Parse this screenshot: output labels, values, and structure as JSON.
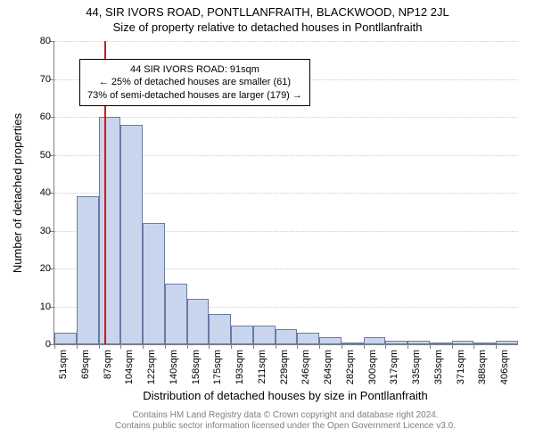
{
  "titles": {
    "main": "44, SIR IVORS ROAD, PONTLLANFRAITH, BLACKWOOD, NP12 2JL",
    "sub": "Size of property relative to detached houses in Pontllanfraith"
  },
  "axes": {
    "ylabel": "Number of detached properties",
    "xlabel": "Distribution of detached houses by size in Pontllanfraith",
    "ylim": [
      0,
      80
    ],
    "ytick_step": 10,
    "y_tick_font": 11,
    "x_tick_font": 11,
    "label_font": 13
  },
  "histogram": {
    "type": "bar",
    "categories": [
      "51sqm",
      "69sqm",
      "87sqm",
      "104sqm",
      "122sqm",
      "140sqm",
      "158sqm",
      "175sqm",
      "193sqm",
      "211sqm",
      "229sqm",
      "246sqm",
      "264sqm",
      "282sqm",
      "300sqm",
      "317sqm",
      "335sqm",
      "353sqm",
      "371sqm",
      "388sqm",
      "406sqm"
    ],
    "values": [
      3,
      39,
      60,
      58,
      32,
      16,
      12,
      8,
      5,
      5,
      4,
      3,
      2,
      0,
      2,
      1,
      1,
      0,
      1,
      0,
      1
    ],
    "bar_fill": "#c9d5ed",
    "bar_stroke": "#6a7aa6",
    "bar_stroke_width": 1,
    "background_color": "#ffffff",
    "grid_color": "#cccccc"
  },
  "reference_line": {
    "value_sqm": 91,
    "color": "#d01818",
    "width": 2
  },
  "annotation": {
    "lines": [
      "44 SIR IVORS ROAD: 91sqm",
      "← 25% of detached houses are smaller (61)",
      "73% of semi-detached houses are larger (179) →"
    ],
    "border_color": "#000000",
    "bg_color": "#ffffff",
    "font_size": 11
  },
  "footer": {
    "line1": "Contains HM Land Registry data © Crown copyright and database right 2024.",
    "line2": "Contains public sector information licensed under the Open Government Licence v3.0.",
    "color": "#808080",
    "font_size": 10
  }
}
